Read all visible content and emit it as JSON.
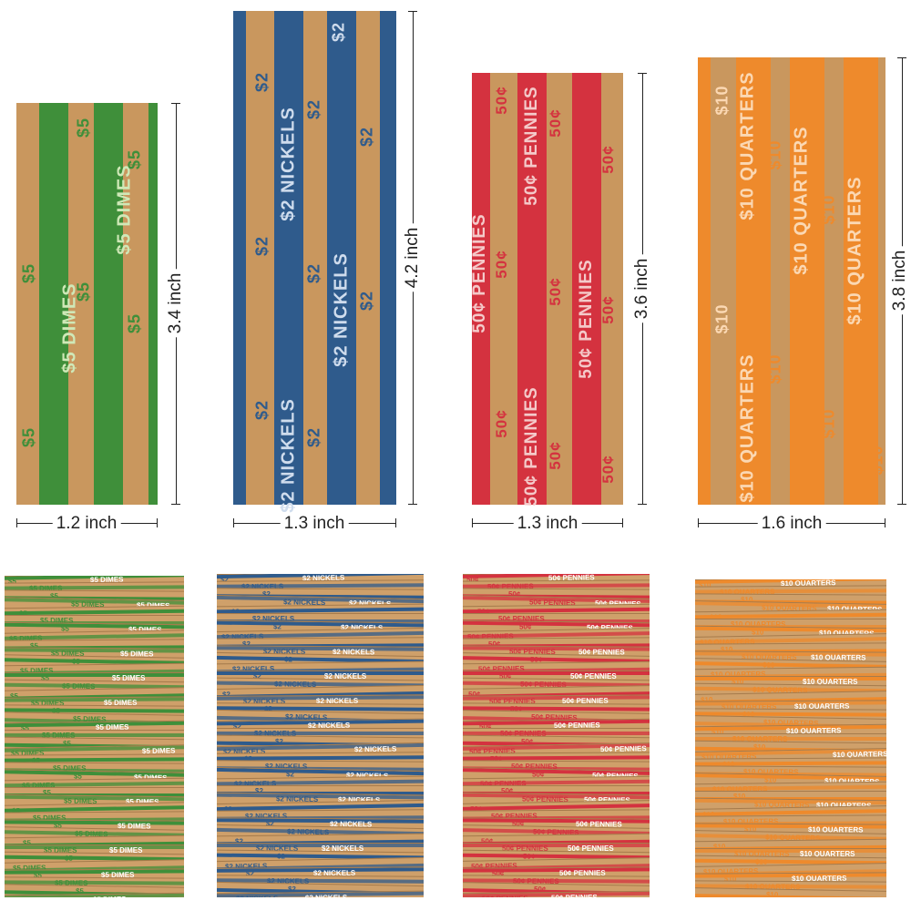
{
  "wrappers": [
    {
      "id": "dimes",
      "color": "#3f8f3a",
      "text_main": "$5 DIMES",
      "text_amount": "$5",
      "width_label": "1.2 inch",
      "height_label": "3.4 inch"
    },
    {
      "id": "nickels",
      "color": "#2f5b8c",
      "text_main": "$2 NICKELS",
      "text_amount": "$2",
      "width_label": "1.3 inch",
      "height_label": "4.2 inch"
    },
    {
      "id": "pennies",
      "color": "#d4323f",
      "text_main": "50¢ PENNIES",
      "text_amount": "50¢",
      "width_label": "1.3 inch",
      "height_label": "3.6 inch"
    },
    {
      "id": "quarters",
      "color": "#ee8a2c",
      "text_main": "$10 QUARTERS",
      "text_amount": "$10",
      "width_label": "1.6 inch",
      "height_label": "3.8 inch"
    }
  ],
  "stacks": [
    {
      "id": "dimes-stack",
      "color": "#3f8f3a",
      "text_main": "$5 DIMES",
      "text_amount": "$5"
    },
    {
      "id": "nickels-stack",
      "color": "#2f5b8c",
      "text_main": "$2 NICKELS",
      "text_amount": "$2"
    },
    {
      "id": "pennies-stack",
      "color": "#d4323f",
      "text_main": "50¢ PENNIES",
      "text_amount": "50¢"
    },
    {
      "id": "quarters-stack",
      "color": "#ee8a2c",
      "text_main": "$10 QUARTERS",
      "text_amount": "$10"
    }
  ]
}
